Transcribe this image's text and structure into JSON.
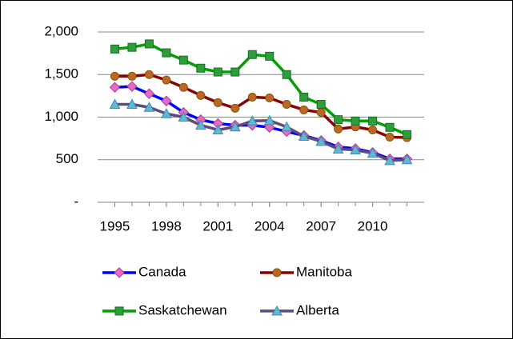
{
  "chart_data": {
    "type": "line",
    "x": [
      1995,
      1996,
      1997,
      1998,
      1999,
      2000,
      2001,
      2002,
      2003,
      2004,
      2005,
      2006,
      2007,
      2008,
      2009,
      2010,
      2011,
      2012
    ],
    "xlim": [
      1994,
      2013
    ],
    "xticks": [
      1995,
      1998,
      2001,
      2004,
      2007,
      2010
    ],
    "ylim": [
      0,
      2000
    ],
    "yticks": [
      {
        "value": 0,
        "label": "-"
      },
      500,
      {
        "value": 1000,
        "label": "1,000"
      },
      {
        "value": 1500,
        "label": "1,500"
      },
      {
        "value": 2000,
        "label": "2,000"
      }
    ],
    "grid": true,
    "series": [
      {
        "name": "Canada",
        "color": "#0000ff",
        "marker": "diamond",
        "marker_color": "#e46cc8",
        "values": [
          1350,
          1360,
          1275,
          1190,
          1055,
          970,
          925,
          905,
          905,
          880,
          830,
          785,
          725,
          650,
          630,
          585,
          510,
          510
        ]
      },
      {
        "name": "Manitoba",
        "color": "#8b0000",
        "marker": "circle",
        "marker_color": "#c0652a",
        "values": [
          1480,
          1480,
          1500,
          1435,
          1350,
          1255,
          1170,
          1105,
          1235,
          1225,
          1150,
          1085,
          1055,
          860,
          885,
          850,
          765,
          760
        ]
      },
      {
        "name": "Saskatchewan",
        "color": "#00a000",
        "marker": "square",
        "marker_color": "#2e9e3a",
        "values": [
          1800,
          1820,
          1860,
          1755,
          1670,
          1575,
          1530,
          1530,
          1735,
          1715,
          1500,
          1235,
          1150,
          970,
          955,
          955,
          880,
          795
        ]
      },
      {
        "name": "Alberta",
        "color": "#604a7b",
        "marker": "triangle",
        "marker_color": "#5fb8d8",
        "values": [
          1150,
          1150,
          1115,
          1040,
          1000,
          905,
          850,
          885,
          955,
          960,
          885,
          775,
          715,
          625,
          615,
          575,
          490,
          500
        ]
      }
    ]
  }
}
